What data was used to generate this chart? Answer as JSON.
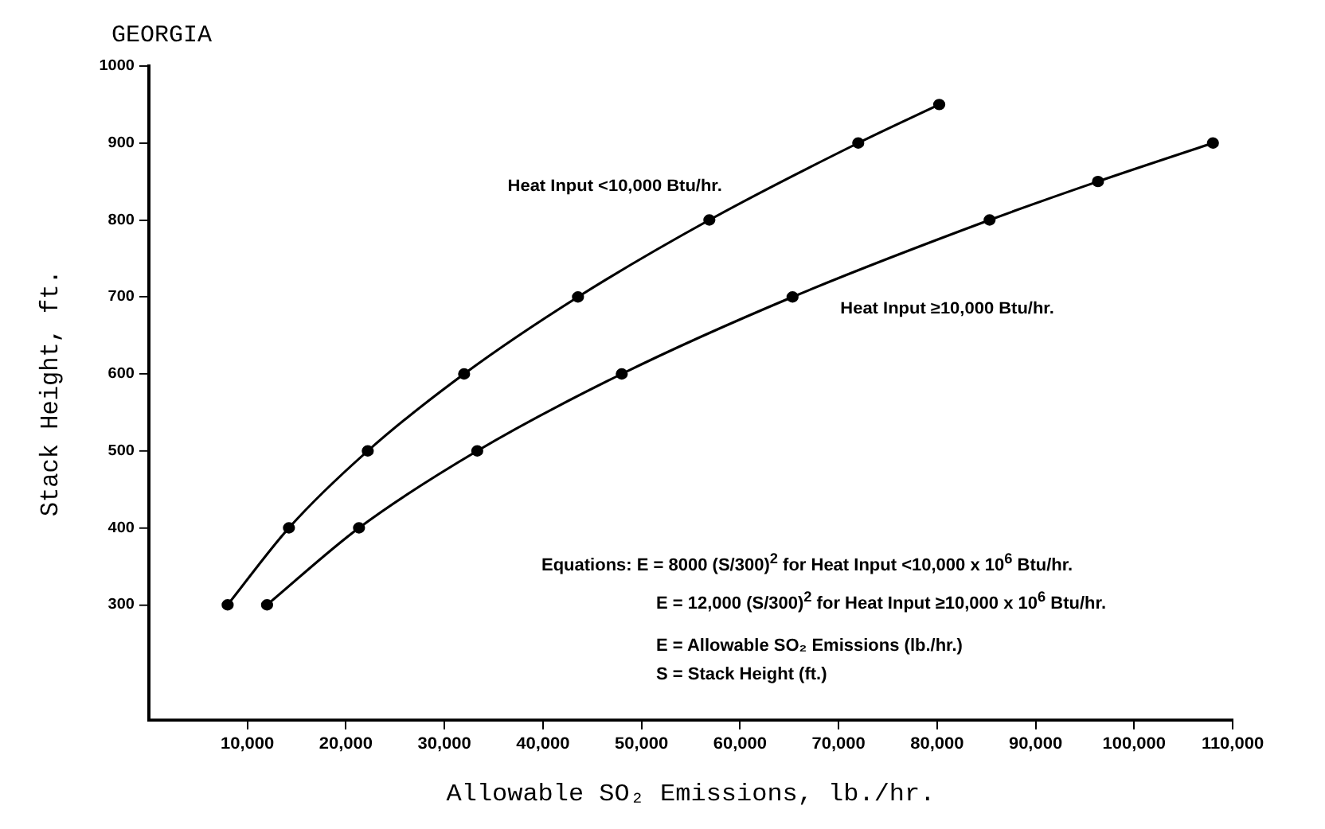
{
  "chart_data": {
    "type": "line",
    "title": "GEORGIA",
    "xlabel": "Allowable SO₂ Emissions, lb./hr.",
    "ylabel": "Stack Height, ft.",
    "xlim": [
      0,
      110000
    ],
    "ylim": [
      150,
      1000
    ],
    "xticks": [
      {
        "value": 10000,
        "label": "10,000"
      },
      {
        "value": 20000,
        "label": "20,000"
      },
      {
        "value": 30000,
        "label": "30,000"
      },
      {
        "value": 40000,
        "label": "40,000"
      },
      {
        "value": 50000,
        "label": "50,000"
      },
      {
        "value": 60000,
        "label": "60,000"
      },
      {
        "value": 70000,
        "label": "70,000"
      },
      {
        "value": 80000,
        "label": "80,000"
      },
      {
        "value": 90000,
        "label": "90,000"
      },
      {
        "value": 100000,
        "label": "100,000"
      },
      {
        "value": 110000,
        "label": "110,000"
      }
    ],
    "yticks": [
      300,
      400,
      500,
      600,
      700,
      800,
      900,
      1000
    ],
    "series": [
      {
        "name": "Heat Input <10,000 Btu/hr.",
        "color": "#000000",
        "x": [
          8000,
          14222,
          22222,
          32000,
          43556,
          56889,
          72000,
          80222
        ],
        "values": [
          300,
          400,
          500,
          600,
          700,
          800,
          900,
          950
        ]
      },
      {
        "name": "Heat Input ≥10,000 Btu/hr.",
        "color": "#000000",
        "x": [
          12000,
          21333,
          33333,
          48000,
          65333,
          85333,
          96333,
          108000
        ],
        "values": [
          300,
          400,
          500,
          600,
          700,
          800,
          850,
          900
        ]
      }
    ],
    "marker": "circle",
    "line_style": "solid",
    "grid": false,
    "legend": false,
    "annotations": [
      "Equations: E = 8000 (S/300)$^{2}$ for Heat Input <10,000 x 10$^{6}$ Btu/hr.",
      "E = 12,000 (S/300)$^{2}$ for Heat Input ≥10,000 x 10$^{6}$ Btu/hr.",
      "E = Allowable SO₂ Emissions (lb./hr.)",
      "S = Stack Height (ft.)"
    ]
  }
}
